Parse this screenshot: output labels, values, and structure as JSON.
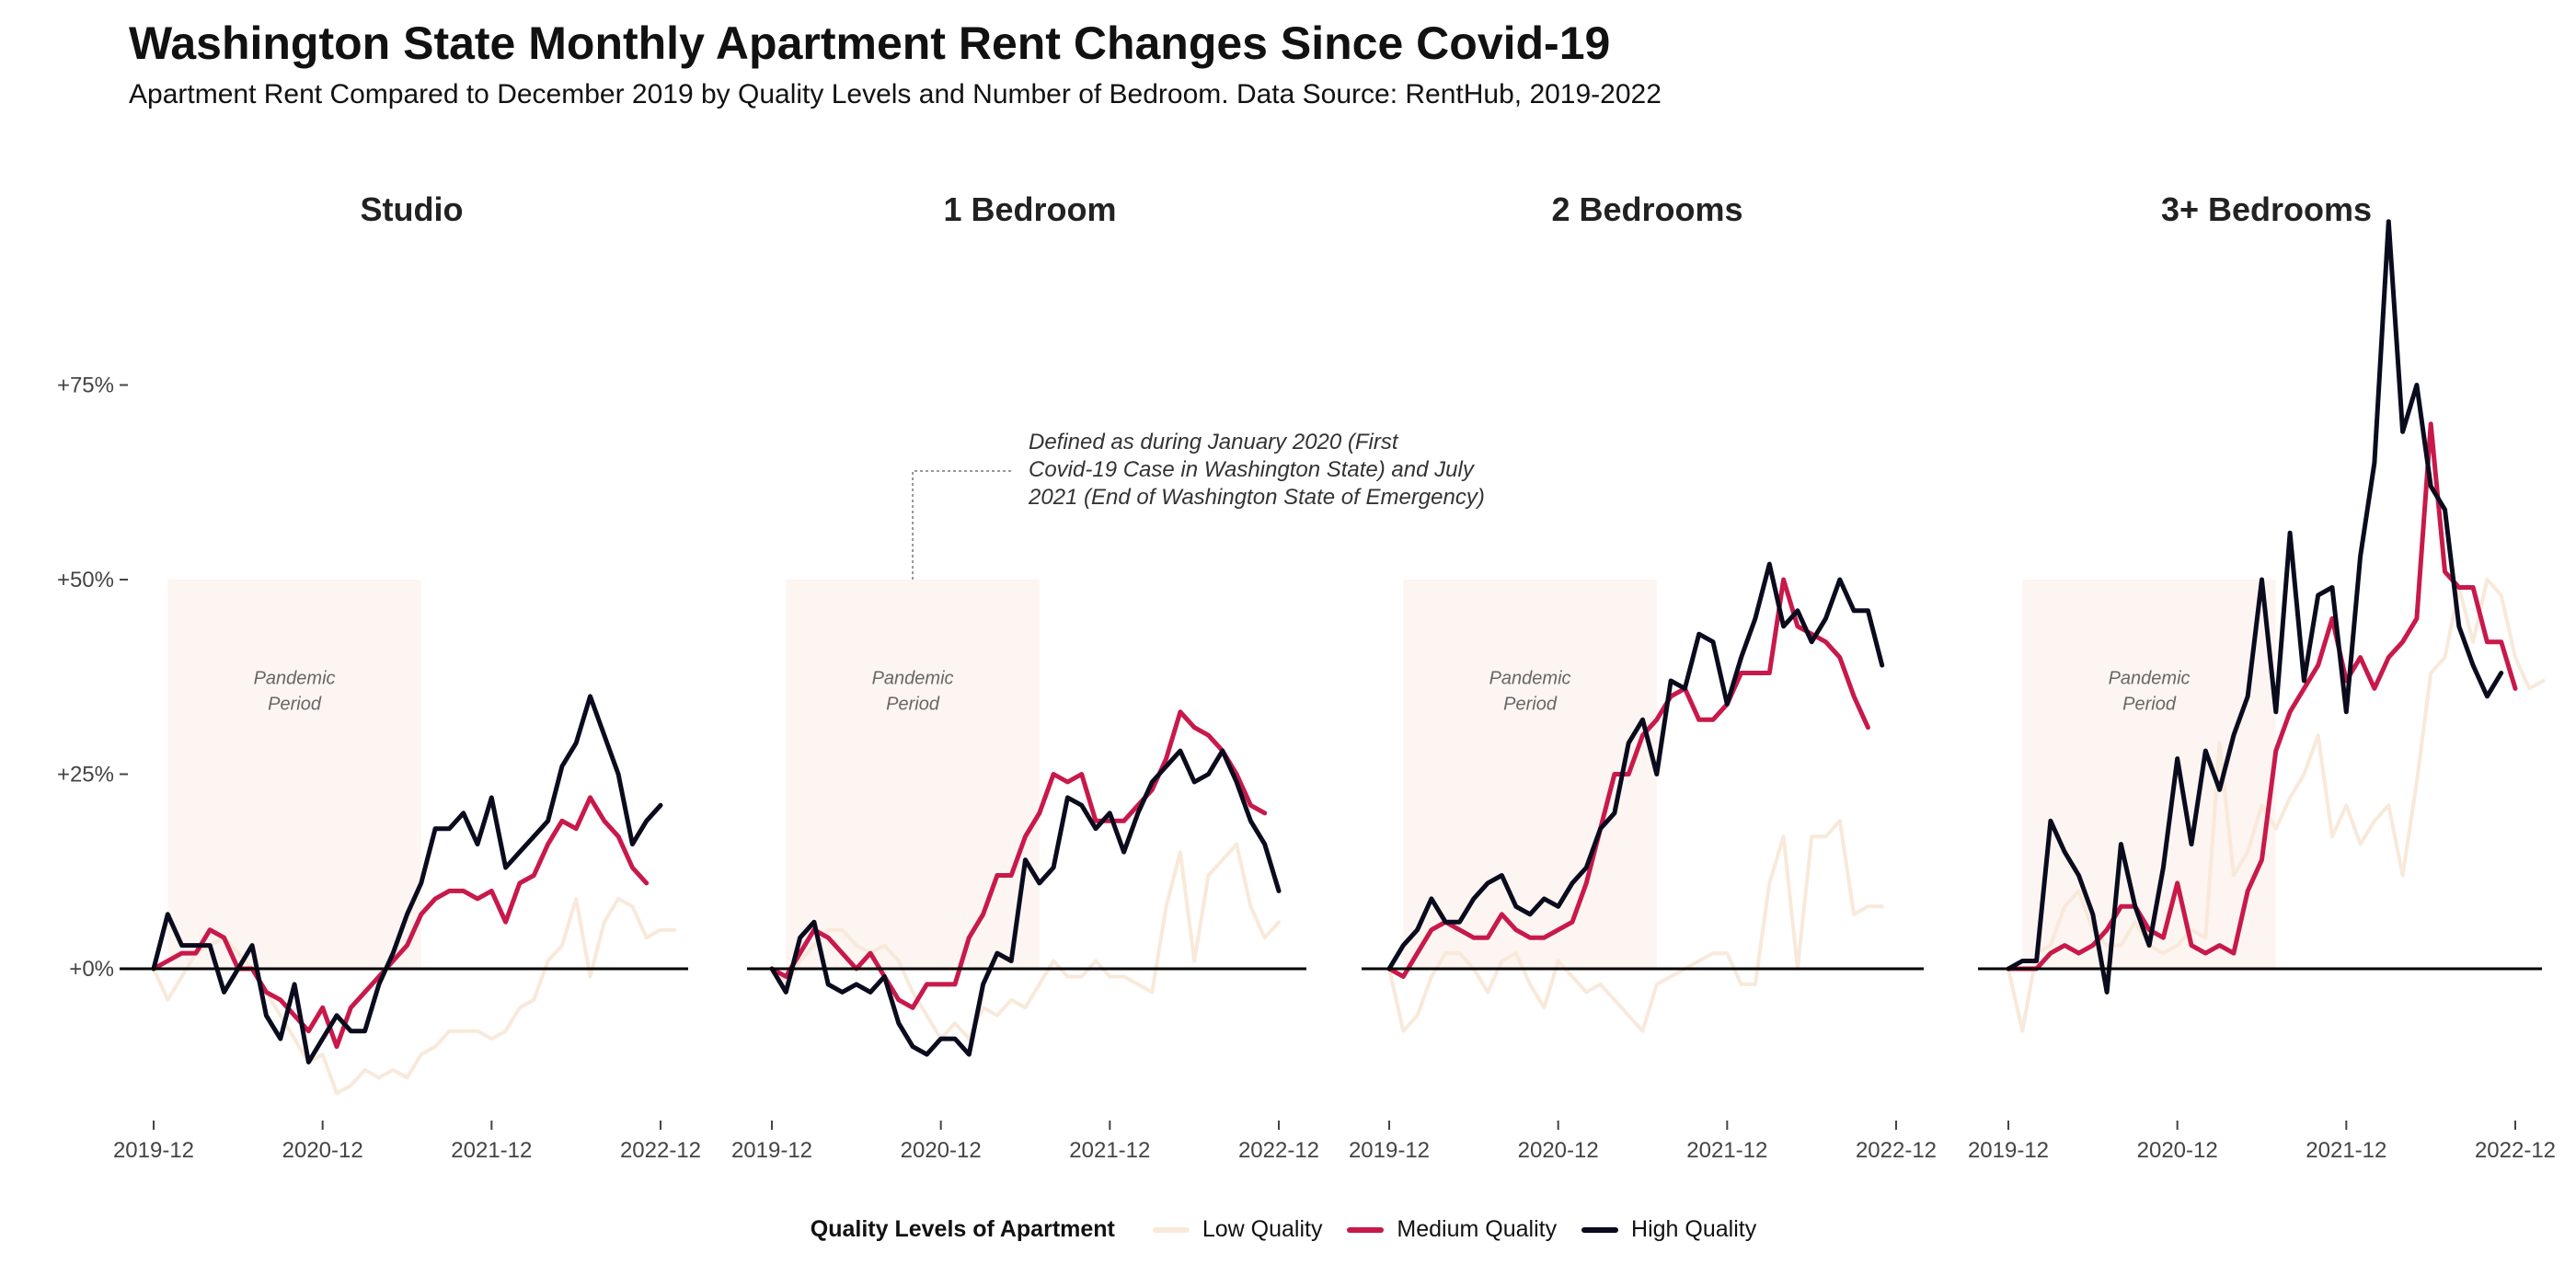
{
  "title": "Washington State Monthly Apartment Rent Changes Since Covid-19",
  "subtitle": "Apartment Rent Compared to December 2019 by Quality Levels and Number of Bedroom. Data Source: RentHub, 2019-2022",
  "colors": {
    "low": "#F8E9DA",
    "medium": "#C8194B",
    "high": "#0B0B1E",
    "pandemic_shade": "#FDF5F1"
  },
  "annotation": {
    "lines": [
      "Defined as during January 2020 (First",
      "Covid-19 Case in Washington State) and July",
      "2021 (End of Washington State of Emergency)"
    ]
  },
  "pandemic_label": [
    "Pandemic",
    "Period"
  ],
  "legend": {
    "title": "Quality Levels of Apartment",
    "items": [
      {
        "key": "low",
        "label": "Low Quality"
      },
      {
        "key": "medium",
        "label": "Medium Quality"
      },
      {
        "key": "high",
        "label": "High Quality"
      }
    ]
  },
  "chart_data": {
    "type": "line",
    "ylabel": "",
    "y_ticks": [
      0,
      25,
      50,
      75
    ],
    "y_tick_labels": [
      "+0%",
      "+25%",
      "+50%",
      "+75%"
    ],
    "ylim": [
      -20,
      96
    ],
    "x_ticks": [
      "2019-12",
      "2020-12",
      "2021-12",
      "2022-12"
    ],
    "pandemic_period": [
      "2020-01",
      "2021-07"
    ],
    "x_start": "2019-12",
    "facets": [
      {
        "title": "Studio",
        "series": [
          {
            "name": "Low Quality",
            "key": "low",
            "values": [
              0,
              -4,
              -1,
              2,
              3,
              4,
              2,
              0,
              -3,
              -6,
              -9,
              -12,
              -11,
              -16,
              -15,
              -13,
              -14,
              -13,
              -14,
              -11,
              -10,
              -8,
              -8,
              -8,
              -9,
              -8,
              -5,
              -4,
              1,
              3,
              9,
              -1,
              6,
              9,
              8,
              4,
              5,
              5
            ]
          },
          {
            "name": "Medium Quality",
            "key": "medium",
            "values": [
              0,
              1,
              2,
              2,
              5,
              4,
              0,
              0,
              -3,
              -4,
              -6,
              -8,
              -5,
              -10,
              -5,
              -3,
              -1,
              1,
              3,
              7,
              9,
              10,
              10,
              9,
              10,
              6,
              11,
              12,
              16,
              19,
              18,
              22,
              19,
              17,
              13,
              11
            ]
          },
          {
            "name": "High Quality",
            "key": "high",
            "values": [
              0,
              7,
              3,
              3,
              3,
              -3,
              0,
              3,
              -6,
              -9,
              -2,
              -12,
              -9,
              -6,
              -8,
              -8,
              -2,
              2,
              7,
              11,
              18,
              18,
              20,
              16,
              22,
              13,
              15,
              17,
              19,
              26,
              29,
              35,
              30,
              25,
              16,
              19,
              21
            ]
          }
        ]
      },
      {
        "title": "1 Bedroom",
        "series": [
          {
            "name": "Low Quality",
            "key": "low",
            "values": [
              0,
              -2,
              1,
              3,
              5,
              5,
              3,
              2,
              3,
              1,
              -3,
              -6,
              -9,
              -7,
              -9,
              -5,
              -6,
              -4,
              -5,
              -2,
              1,
              -1,
              -1,
              1,
              -1,
              -1,
              -2,
              -3,
              8,
              15,
              1,
              12,
              14,
              16,
              8,
              4,
              6
            ]
          },
          {
            "name": "Medium Quality",
            "key": "medium",
            "values": [
              0,
              -1,
              2,
              5,
              4,
              2,
              0,
              2,
              -1,
              -4,
              -5,
              -2,
              -2,
              -2,
              4,
              7,
              12,
              12,
              17,
              20,
              25,
              24,
              25,
              19,
              19,
              19,
              21,
              23,
              27,
              33,
              31,
              30,
              28,
              25,
              21,
              20
            ]
          },
          {
            "name": "High Quality",
            "key": "high",
            "values": [
              0,
              -3,
              4,
              6,
              -2,
              -3,
              -2,
              -3,
              -1,
              -7,
              -10,
              -11,
              -9,
              -9,
              -11,
              -2,
              2,
              1,
              14,
              11,
              13,
              22,
              21,
              18,
              20,
              15,
              20,
              24,
              26,
              28,
              24,
              25,
              28,
              24,
              19,
              16,
              10
            ]
          }
        ]
      },
      {
        "title": "2 Bedrooms",
        "series": [
          {
            "name": "Low Quality",
            "key": "low",
            "values": [
              0,
              -8,
              -6,
              -1,
              2,
              2,
              0,
              -3,
              1,
              2,
              -2,
              -5,
              1,
              -1,
              -3,
              -2,
              -4,
              -6,
              -8,
              -2,
              -1,
              0,
              1,
              2,
              2,
              -2,
              -2,
              11,
              17,
              0,
              17,
              17,
              19,
              7,
              8,
              8
            ]
          },
          {
            "name": "Medium Quality",
            "key": "medium",
            "values": [
              0,
              -1,
              2,
              5,
              6,
              5,
              4,
              4,
              7,
              5,
              4,
              4,
              5,
              6,
              11,
              18,
              25,
              25,
              30,
              32,
              35,
              36,
              32,
              32,
              34,
              38,
              38,
              38,
              50,
              44,
              43,
              42,
              40,
              35,
              31
            ]
          },
          {
            "name": "High Quality",
            "key": "high",
            "values": [
              0,
              3,
              5,
              9,
              6,
              6,
              9,
              11,
              12,
              8,
              7,
              9,
              8,
              11,
              13,
              18,
              20,
              29,
              32,
              25,
              37,
              36,
              43,
              42,
              34,
              40,
              45,
              52,
              44,
              46,
              42,
              45,
              50,
              46,
              46,
              39
            ]
          }
        ]
      },
      {
        "title": "3+ Bedrooms",
        "series": [
          {
            "name": "Low Quality",
            "key": "low",
            "values": [
              0,
              -8,
              2,
              3,
              8,
              10,
              5,
              3,
              3,
              6,
              3,
              2,
              3,
              5,
              4,
              29,
              12,
              15,
              21,
              18,
              22,
              25,
              30,
              17,
              21,
              16,
              19,
              21,
              12,
              24,
              38,
              40,
              49,
              42,
              50,
              48,
              40,
              36,
              37
            ]
          },
          {
            "name": "Medium Quality",
            "key": "medium",
            "values": [
              0,
              0,
              0,
              2,
              3,
              2,
              3,
              5,
              8,
              8,
              5,
              4,
              11,
              3,
              2,
              3,
              2,
              10,
              14,
              28,
              33,
              36,
              39,
              45,
              37,
              40,
              36,
              40,
              42,
              45,
              70,
              51,
              49,
              49,
              42,
              42,
              36
            ]
          },
          {
            "name": "High Quality",
            "key": "high",
            "values": [
              0,
              1,
              1,
              19,
              15,
              12,
              7,
              -3,
              16,
              8,
              3,
              13,
              27,
              16,
              28,
              23,
              30,
              35,
              50,
              33,
              56,
              37,
              48,
              49,
              33,
              53,
              65,
              96,
              69,
              75,
              62,
              59,
              44,
              39,
              35,
              38
            ]
          }
        ]
      }
    ]
  }
}
